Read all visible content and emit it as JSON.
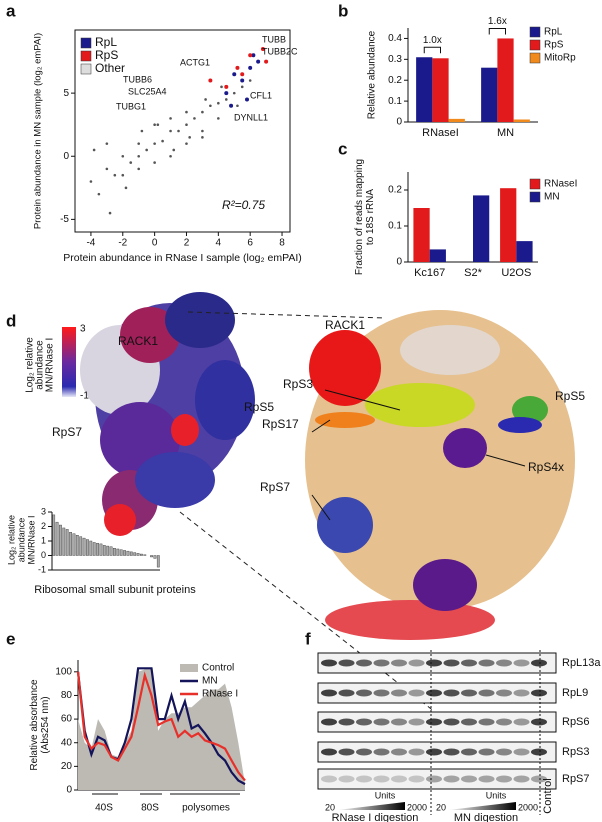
{
  "panel_labels": [
    "a",
    "b",
    "c",
    "d",
    "e",
    "f"
  ],
  "chart_data": [
    {
      "type": "scatter",
      "xlabel": "Protein abundance in RNase I sample (log₂ emPAI)",
      "ylabel": "Protein abundance in MN sample (log₂ emPAI)",
      "xlim": [
        -5,
        8.5
      ],
      "xticks": [
        -4,
        -2,
        0,
        2,
        4,
        6,
        8
      ],
      "ylim": [
        -6,
        10
      ],
      "yticks": [
        -5,
        0,
        5
      ],
      "legend": "upper left",
      "series": [
        {
          "name": "Other",
          "color": "#555555",
          "x": [
            -4,
            -3.5,
            -3,
            -2.5,
            -2,
            -1.5,
            -1,
            -0.5,
            0,
            0.5,
            1,
            1.5,
            2,
            2.5,
            3,
            3.5,
            4,
            4.5,
            5,
            5.5,
            6,
            -3,
            -2,
            -1,
            0,
            1,
            2,
            3,
            4,
            5,
            -3.8,
            -2.8,
            -1.8,
            -0.8,
            0.2,
            1.2,
            2.2,
            3.2,
            4.2,
            5.2,
            1,
            2,
            3,
            0,
            -1
          ],
          "values": [
            -2,
            -3,
            -1,
            -1.5,
            0,
            -0.5,
            0,
            0.5,
            1,
            1.2,
            2,
            2,
            2.5,
            3,
            3.5,
            4,
            4.2,
            4.5,
            5,
            5.5,
            6,
            1,
            -1.5,
            1,
            -0.5,
            0,
            3.5,
            2,
            3,
            6.5,
            0.5,
            -4.5,
            -2.5,
            2,
            2.5,
            0.5,
            1.5,
            4.5,
            5.5,
            4,
            3,
            1,
            1.5,
            2.5,
            -1
          ]
        },
        {
          "name": "RpL",
          "color": "#1a1a8c",
          "x": [
            4.5,
            5,
            5.5,
            6,
            6.5,
            5.8,
            6.2,
            4.8
          ],
          "values": [
            5,
            6.5,
            6,
            7,
            7.5,
            4.5,
            8,
            4
          ]
        },
        {
          "name": "RpS",
          "color": "#e31a1c",
          "x": [
            3.5,
            4.5,
            5.2,
            6,
            6.8,
            7,
            5.5
          ],
          "values": [
            6,
            5.5,
            7,
            8,
            8.5,
            7.5,
            6.5
          ]
        }
      ],
      "legend_order": [
        1,
        2,
        0
      ],
      "annotations": [
        "TUBB",
        "TUBB2C",
        "ACTG1",
        "TUBB6",
        "SLC25A4",
        "TUBG1",
        "CFL1",
        "DYNLL1",
        "R²=0.75"
      ]
    },
    {
      "type": "bar",
      "ylabel": "Relative abundance",
      "categories": [
        "RNaseI",
        "MN"
      ],
      "ylim": [
        0,
        0.45
      ],
      "yticks": [
        0,
        0.1,
        0.2,
        0.3,
        0.4
      ],
      "legend": "upper right",
      "series": [
        {
          "name": "RpL",
          "color": "#1a1a8c",
          "values": [
            0.31,
            0.26
          ]
        },
        {
          "name": "RpS",
          "color": "#e31a1c",
          "values": [
            0.305,
            0.4
          ]
        },
        {
          "name": "MitoRp",
          "color": "#f08a1c",
          "values": [
            0.015,
            0.012
          ]
        }
      ],
      "annotations": [
        "1.0x",
        "1.6x"
      ]
    },
    {
      "type": "bar",
      "ylabel": [
        "Fraction of reads mapping",
        "to 18S rRNA"
      ],
      "categories": [
        "Kc167",
        "S2*",
        "U2OS"
      ],
      "ylim": [
        0,
        0.25
      ],
      "yticks": [
        0,
        0.1,
        0.2
      ],
      "legend": "upper right",
      "series": [
        {
          "name": "RNaseI",
          "color": "#e31a1c",
          "values": [
            0.15,
            null,
            0.205
          ]
        },
        {
          "name": "MN",
          "color": "#1a1a8c",
          "values": [
            0.035,
            0.185,
            0.058
          ]
        }
      ]
    },
    {
      "type": "bar",
      "ylabel": [
        "Log₂ relative",
        "abundance",
        "MN/RNase I"
      ],
      "xlabel": "Ribosomal small subunit proteins",
      "ylim": [
        -1,
        3
      ],
      "yticks": [
        -1,
        0,
        1,
        2,
        3
      ],
      "color": "#aaaaaa",
      "values": [
        2.8,
        2.3,
        2.1,
        1.9,
        1.8,
        1.6,
        1.5,
        1.4,
        1.3,
        1.2,
        1.1,
        1.0,
        0.9,
        0.85,
        0.8,
        0.7,
        0.65,
        0.6,
        0.5,
        0.45,
        0.4,
        0.35,
        0.3,
        0.25,
        0.2,
        0.15,
        0.1,
        0.05,
        0,
        -0.1,
        -0.2,
        -0.8
      ]
    },
    {
      "type": "line",
      "ylabel": [
        "Relative absorbance",
        "(Abs254 nm)"
      ],
      "xlim": [
        0,
        100
      ],
      "ylim": [
        0,
        110
      ],
      "yticks": [
        0,
        20,
        40,
        60,
        80,
        100
      ],
      "legend": "upper right",
      "x": [
        0,
        4,
        8,
        12,
        16,
        20,
        24,
        28,
        32,
        36,
        40,
        44,
        48,
        52,
        56,
        60,
        64,
        68,
        72,
        76,
        80,
        84,
        88,
        92,
        96,
        100
      ],
      "series": [
        {
          "name": "Control",
          "color": "#bdb9b3",
          "area": true,
          "values": [
            60,
            40,
            35,
            60,
            50,
            30,
            28,
            40,
            50,
            100,
            102,
            102,
            50,
            60,
            65,
            65,
            70,
            70,
            75,
            80,
            85,
            85,
            90,
            70,
            40,
            5
          ]
        },
        {
          "name": "MN",
          "color": "#14145a",
          "values": [
            100,
            50,
            30,
            45,
            42,
            28,
            26,
            40,
            60,
            103,
            103,
            103,
            60,
            60,
            80,
            60,
            75,
            52,
            55,
            48,
            40,
            30,
            25,
            15,
            8,
            5
          ]
        },
        {
          "name": "RNase I",
          "color": "#e8302a",
          "values": [
            100,
            45,
            35,
            40,
            38,
            28,
            25,
            35,
            45,
            70,
            97,
            80,
            55,
            58,
            60,
            45,
            50,
            45,
            48,
            42,
            40,
            38,
            35,
            25,
            15,
            8
          ]
        }
      ],
      "annotations": [
        "40S",
        "80S",
        "polysomes"
      ]
    }
  ],
  "structure": {
    "colorbar_title": [
      "Log₂ relative",
      "abundance",
      "MN/RNase I"
    ],
    "colorbar_labels": [
      "3",
      "-1"
    ],
    "left_labels": [
      "RACK1",
      "RpS5",
      "RpS7"
    ],
    "right_labels": [
      "RACK1",
      "RpS3",
      "RpS17",
      "RpS5",
      "RpS7",
      "RpS4x"
    ]
  },
  "blot": {
    "rows": [
      "RpL13a",
      "RpL9",
      "RpS6",
      "RpS3",
      "RpS7"
    ],
    "units": [
      "Units",
      "Units"
    ],
    "range": [
      "20",
      "2000",
      "20",
      "2000"
    ],
    "groups": [
      "RNase I digestion",
      "MN digestion",
      "Control"
    ]
  }
}
